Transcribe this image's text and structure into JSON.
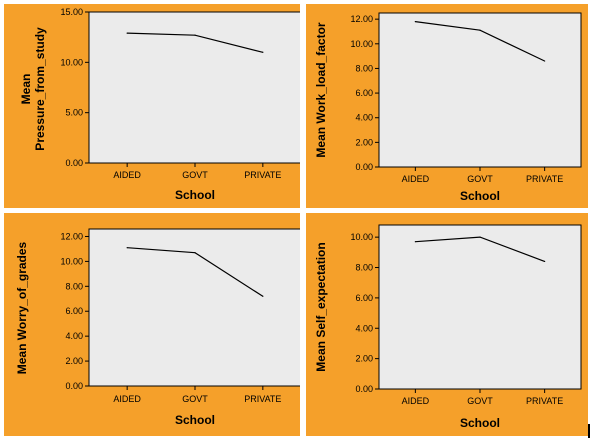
{
  "chart_data": [
    {
      "type": "line",
      "title": "",
      "xlabel": "School",
      "ylabel_lines": [
        "Mean",
        "Pressure_from_study"
      ],
      "categories": [
        "AIDED",
        "GOVT",
        "PRIVATE"
      ],
      "series": [
        {
          "values": [
            12.9,
            12.7,
            11.0
          ]
        }
      ],
      "ylim": [
        0,
        15
      ],
      "yticks": [
        "0.00",
        "5.00",
        "10.00",
        "15.00"
      ],
      "ytick_values": [
        0,
        5,
        10,
        15
      ],
      "grid": false
    },
    {
      "type": "line",
      "title": "",
      "xlabel": "School",
      "ylabel_lines": [
        "Mean Work_load_factor"
      ],
      "categories": [
        "AIDED",
        "GOVT",
        "PRIVATE"
      ],
      "series": [
        {
          "values": [
            11.8,
            11.1,
            8.6
          ]
        }
      ],
      "ylim": [
        0,
        12.5
      ],
      "yticks": [
        "0.00",
        "2.00",
        "4.00",
        "6.00",
        "8.00",
        "10.00",
        "12.00"
      ],
      "ytick_values": [
        0,
        2,
        4,
        6,
        8,
        10,
        12
      ],
      "grid": false
    },
    {
      "type": "line",
      "title": "",
      "xlabel": "School",
      "ylabel_lines": [
        "Mean Worry_of_grades"
      ],
      "categories": [
        "AIDED",
        "GOVT",
        "PRIVATE"
      ],
      "series": [
        {
          "values": [
            11.1,
            10.7,
            7.2
          ]
        }
      ],
      "ylim": [
        0,
        12.6
      ],
      "yticks": [
        "0.00",
        "2.00",
        "4.00",
        "6.00",
        "8.00",
        "10.00",
        "12.00"
      ],
      "ytick_values": [
        0,
        2,
        4,
        6,
        8,
        10,
        12
      ],
      "grid": false
    },
    {
      "type": "line",
      "title": "",
      "xlabel": "School",
      "ylabel_lines": [
        "Mean Self_expectation"
      ],
      "categories": [
        "AIDED",
        "GOVT",
        "PRIVATE"
      ],
      "series": [
        {
          "values": [
            9.7,
            10.0,
            8.4
          ]
        }
      ],
      "ylim": [
        0,
        10.8
      ],
      "yticks": [
        "0.00",
        "2.00",
        "4.00",
        "6.00",
        "8.00",
        "10.00"
      ],
      "ytick_values": [
        0,
        2,
        4,
        6,
        8,
        10
      ],
      "grid": false
    }
  ]
}
